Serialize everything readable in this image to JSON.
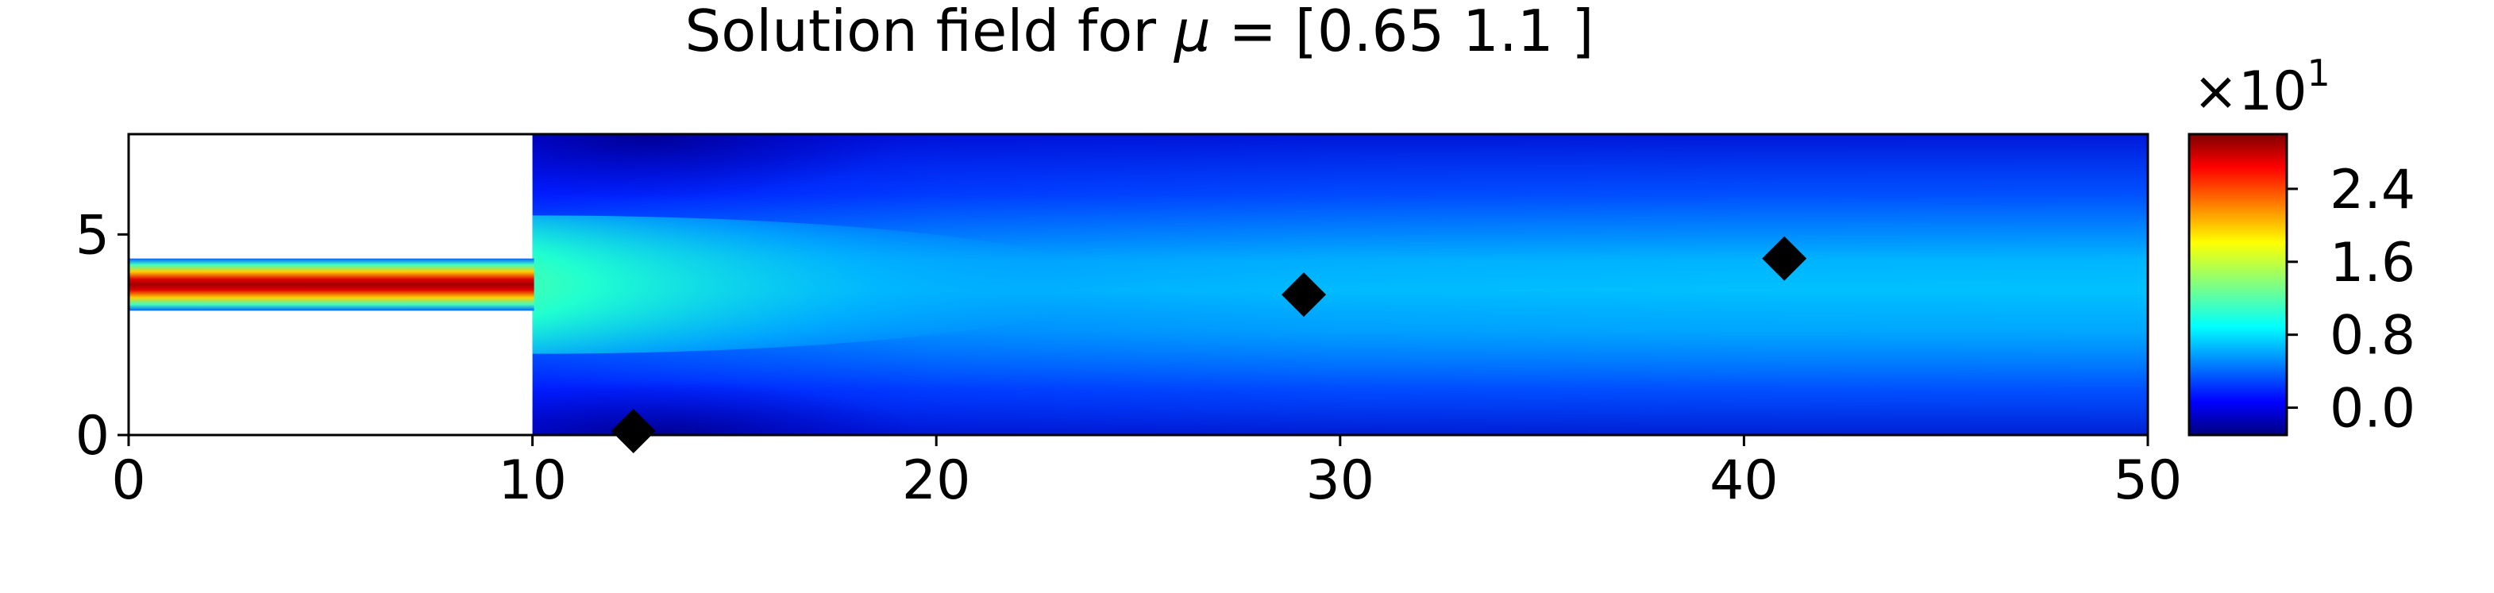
{
  "chart_data": {
    "type": "heatmap",
    "title": "Solution field for μ = [0.65 1.1 ]",
    "title_prefix": "Solution field for ",
    "title_symbol": "μ",
    "title_suffix": " = [0.65 1.1 ]",
    "xlim": [
      0,
      50
    ],
    "ylim": [
      0,
      7.5
    ],
    "x_ticks": [
      "0",
      "10",
      "20",
      "30",
      "40",
      "50"
    ],
    "x_tick_values": [
      0,
      10,
      20,
      30,
      40,
      50
    ],
    "y_ticks": [
      "0",
      "5"
    ],
    "y_tick_values": [
      0,
      5
    ],
    "domain": {
      "inlet_channel": {
        "x": [
          0,
          10
        ],
        "y": [
          3.1,
          4.4
        ]
      },
      "main_channel": {
        "x": [
          10,
          50
        ],
        "y": [
          0,
          7.5
        ]
      }
    },
    "colorbar": {
      "multiplier": "×10",
      "exponent": "1",
      "range": [
        -0.3,
        3.0
      ],
      "ticks": [
        "0.0",
        "0.8",
        "1.6",
        "2.4"
      ],
      "tick_values": [
        0.0,
        0.8,
        1.6,
        2.4
      ],
      "colormap": "jet"
    },
    "markers": [
      {
        "x": 12.5,
        "y": 0.1,
        "shape": "diamond",
        "color": "#000000"
      },
      {
        "x": 29.1,
        "y": 3.5,
        "shape": "diamond",
        "color": "#000000"
      },
      {
        "x": 41.0,
        "y": 4.4,
        "shape": "diamond",
        "color": "#000000"
      }
    ],
    "grid": false
  }
}
